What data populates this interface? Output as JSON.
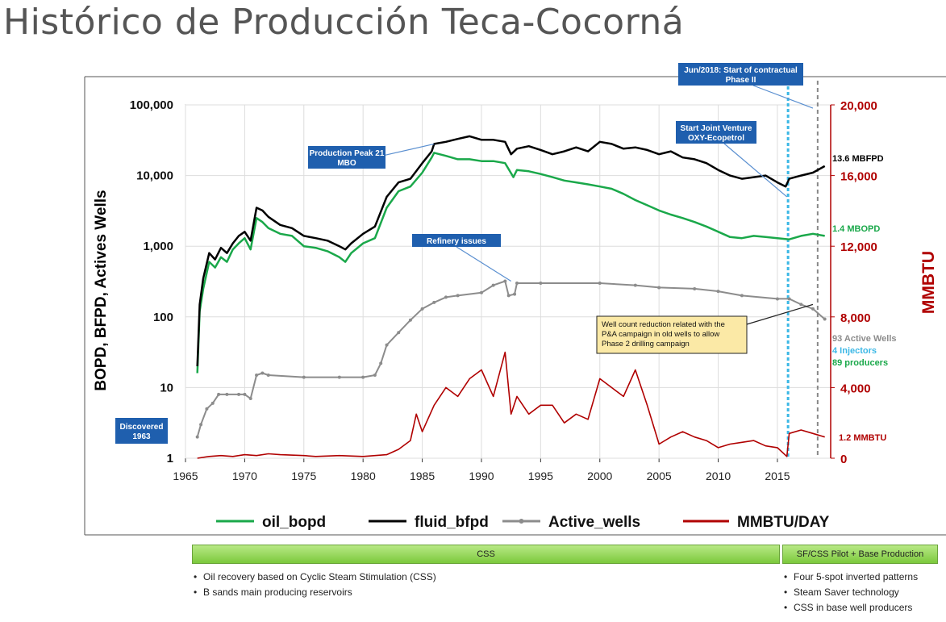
{
  "page": {
    "title": "Histórico de Producción Teca-Cocorná"
  },
  "colors": {
    "oil": "#1aa84a",
    "fluid": "#000000",
    "wells": "#8c8c8c",
    "mmbtu": "#b00000",
    "annotation_box": "#1f5fae",
    "injectors_line": "#3cb8e6",
    "phase_line": "#888888"
  },
  "chart_data": {
    "type": "line",
    "ylabel": "BOPD, BFPD, Actives Wells",
    "y2label": "MMBTU",
    "x_ticks": [
      1965,
      1970,
      1975,
      1980,
      1985,
      1990,
      1995,
      2000,
      2005,
      2010,
      2015
    ],
    "y_ticks": [
      "1",
      "10",
      "100",
      "1,000",
      "10,000",
      "100,000"
    ],
    "y_scale": "log",
    "ylim": [
      1,
      100000
    ],
    "y2_ticks": [
      "0",
      "4,000",
      "8,000",
      "12,000",
      "16,000",
      "20,000"
    ],
    "y2lim": [
      0,
      20000
    ],
    "xlim": [
      1965,
      2019.5
    ],
    "legend": [
      "oil_bopd",
      "fluid_bfpd",
      "Active_wells",
      "MMBTU/DAY"
    ],
    "legend_position": "bottom",
    "series": [
      {
        "name": "fluid_bfpd",
        "axis": "left",
        "points": [
          [
            1966.0,
            20
          ],
          [
            1966.2,
            150
          ],
          [
            1966.5,
            350
          ],
          [
            1967.0,
            800
          ],
          [
            1967.5,
            650
          ],
          [
            1968.0,
            950
          ],
          [
            1968.5,
            800
          ],
          [
            1969.0,
            1100
          ],
          [
            1969.5,
            1400
          ],
          [
            1970.0,
            1600
          ],
          [
            1970.5,
            1200
          ],
          [
            1971.0,
            3500
          ],
          [
            1971.5,
            3200
          ],
          [
            1972.0,
            2600
          ],
          [
            1973.0,
            2000
          ],
          [
            1974.0,
            1800
          ],
          [
            1975.0,
            1400
          ],
          [
            1976.0,
            1300
          ],
          [
            1977.0,
            1200
          ],
          [
            1978.0,
            1000
          ],
          [
            1978.5,
            900
          ],
          [
            1979.0,
            1100
          ],
          [
            1980.0,
            1500
          ],
          [
            1981.0,
            1900
          ],
          [
            1982.0,
            5000
          ],
          [
            1983.0,
            8000
          ],
          [
            1984.0,
            9000
          ],
          [
            1985.0,
            15000
          ],
          [
            1985.8,
            22000
          ],
          [
            1986.0,
            28000
          ],
          [
            1987.0,
            30000
          ],
          [
            1988.0,
            33000
          ],
          [
            1989.0,
            36000
          ],
          [
            1990.0,
            32000
          ],
          [
            1991.0,
            32000
          ],
          [
            1992.0,
            30000
          ],
          [
            1992.5,
            20000
          ],
          [
            1993.0,
            24000
          ],
          [
            1994.0,
            26000
          ],
          [
            1995.0,
            23000
          ],
          [
            1996.0,
            20000
          ],
          [
            1997.0,
            22000
          ],
          [
            1998.0,
            25000
          ],
          [
            1999.0,
            22000
          ],
          [
            2000.0,
            30000
          ],
          [
            2001.0,
            28000
          ],
          [
            2002.0,
            24000
          ],
          [
            2003.0,
            25000
          ],
          [
            2004.0,
            23000
          ],
          [
            2005.0,
            20000
          ],
          [
            2006.0,
            22000
          ],
          [
            2007.0,
            18000
          ],
          [
            2008.0,
            17000
          ],
          [
            2009.0,
            15000
          ],
          [
            2010.0,
            12000
          ],
          [
            2011.0,
            10000
          ],
          [
            2012.0,
            9000
          ],
          [
            2013.0,
            9500
          ],
          [
            2014.0,
            10000
          ],
          [
            2015.0,
            8000
          ],
          [
            2015.7,
            7000
          ],
          [
            2016.0,
            9000
          ],
          [
            2017.0,
            10000
          ],
          [
            2018.0,
            11000
          ],
          [
            2019.0,
            13600
          ]
        ]
      },
      {
        "name": "oil_bopd",
        "axis": "left",
        "points": [
          [
            1966.0,
            16
          ],
          [
            1966.2,
            120
          ],
          [
            1966.5,
            250
          ],
          [
            1967.0,
            600
          ],
          [
            1967.5,
            500
          ],
          [
            1968.0,
            700
          ],
          [
            1968.5,
            600
          ],
          [
            1969.0,
            900
          ],
          [
            1969.5,
            1100
          ],
          [
            1970.0,
            1300
          ],
          [
            1970.5,
            900
          ],
          [
            1971.0,
            2500
          ],
          [
            1971.5,
            2200
          ],
          [
            1972.0,
            1800
          ],
          [
            1973.0,
            1500
          ],
          [
            1974.0,
            1400
          ],
          [
            1975.0,
            1000
          ],
          [
            1976.0,
            950
          ],
          [
            1977.0,
            850
          ],
          [
            1978.0,
            700
          ],
          [
            1978.5,
            600
          ],
          [
            1979.0,
            800
          ],
          [
            1980.0,
            1100
          ],
          [
            1981.0,
            1300
          ],
          [
            1982.0,
            3500
          ],
          [
            1983.0,
            6000
          ],
          [
            1984.0,
            7000
          ],
          [
            1985.0,
            11000
          ],
          [
            1985.8,
            18000
          ],
          [
            1986.0,
            21000
          ],
          [
            1987.0,
            19000
          ],
          [
            1988.0,
            17000
          ],
          [
            1989.0,
            17000
          ],
          [
            1990.0,
            16000
          ],
          [
            1991.0,
            16000
          ],
          [
            1992.0,
            15000
          ],
          [
            1992.7,
            9500
          ],
          [
            1993.0,
            12000
          ],
          [
            1994.0,
            11500
          ],
          [
            1995.0,
            10500
          ],
          [
            1996.0,
            9500
          ],
          [
            1997.0,
            8500
          ],
          [
            1998.0,
            8000
          ],
          [
            1999.0,
            7500
          ],
          [
            2000.0,
            7000
          ],
          [
            2001.0,
            6500
          ],
          [
            2002.0,
            5500
          ],
          [
            2003.0,
            4500
          ],
          [
            2004.0,
            3800
          ],
          [
            2005.0,
            3200
          ],
          [
            2006.0,
            2800
          ],
          [
            2007.0,
            2500
          ],
          [
            2008.0,
            2200
          ],
          [
            2009.0,
            1900
          ],
          [
            2010.0,
            1600
          ],
          [
            2011.0,
            1350
          ],
          [
            2012.0,
            1300
          ],
          [
            2013.0,
            1400
          ],
          [
            2014.0,
            1350
          ],
          [
            2015.0,
            1300
          ],
          [
            2016.0,
            1250
          ],
          [
            2017.0,
            1400
          ],
          [
            2018.0,
            1500
          ],
          [
            2019.0,
            1400
          ]
        ]
      },
      {
        "name": "Active_wells",
        "axis": "left",
        "points": [
          [
            1966.0,
            2
          ],
          [
            1966.3,
            3
          ],
          [
            1966.8,
            5
          ],
          [
            1967.3,
            6
          ],
          [
            1967.8,
            8
          ],
          [
            1968.5,
            8
          ],
          [
            1969.5,
            8
          ],
          [
            1970.0,
            8
          ],
          [
            1970.5,
            7
          ],
          [
            1971.0,
            15
          ],
          [
            1971.5,
            16
          ],
          [
            1972.0,
            15
          ],
          [
            1975.0,
            14
          ],
          [
            1978.0,
            14
          ],
          [
            1980.0,
            14
          ],
          [
            1981.0,
            15
          ],
          [
            1981.5,
            22
          ],
          [
            1982.0,
            40
          ],
          [
            1983.0,
            60
          ],
          [
            1984.0,
            90
          ],
          [
            1985.0,
            130
          ],
          [
            1986.0,
            160
          ],
          [
            1987.0,
            190
          ],
          [
            1988.0,
            200
          ],
          [
            1990.0,
            220
          ],
          [
            1991.0,
            280
          ],
          [
            1992.0,
            320
          ],
          [
            1992.3,
            200
          ],
          [
            1992.8,
            210
          ],
          [
            1993.0,
            300
          ],
          [
            1995.0,
            300
          ],
          [
            2000.0,
            300
          ],
          [
            2003.0,
            280
          ],
          [
            2005.0,
            260
          ],
          [
            2008.0,
            250
          ],
          [
            2010.0,
            230
          ],
          [
            2012.0,
            200
          ],
          [
            2015.0,
            180
          ],
          [
            2016.0,
            180
          ],
          [
            2017.0,
            150
          ],
          [
            2018.0,
            130
          ],
          [
            2019.0,
            93
          ]
        ]
      },
      {
        "name": "MMBTU/DAY",
        "axis": "right",
        "points": [
          [
            1966.0,
            0
          ],
          [
            1967.0,
            100
          ],
          [
            1968.0,
            150
          ],
          [
            1969.0,
            100
          ],
          [
            1970.0,
            200
          ],
          [
            1971.0,
            150
          ],
          [
            1972.0,
            250
          ],
          [
            1973.0,
            200
          ],
          [
            1975.0,
            150
          ],
          [
            1976.0,
            100
          ],
          [
            1978.0,
            150
          ],
          [
            1980.0,
            100
          ],
          [
            1981.0,
            150
          ],
          [
            1982.0,
            200
          ],
          [
            1983.0,
            500
          ],
          [
            1984.0,
            1000
          ],
          [
            1984.5,
            2500
          ],
          [
            1985.0,
            1500
          ],
          [
            1986.0,
            3000
          ],
          [
            1987.0,
            4000
          ],
          [
            1988.0,
            3500
          ],
          [
            1989.0,
            4500
          ],
          [
            1990.0,
            5000
          ],
          [
            1991.0,
            3500
          ],
          [
            1992.0,
            6000
          ],
          [
            1992.5,
            2500
          ],
          [
            1993.0,
            3500
          ],
          [
            1994.0,
            2500
          ],
          [
            1995.0,
            3000
          ],
          [
            1996.0,
            3000
          ],
          [
            1997.0,
            2000
          ],
          [
            1998.0,
            2500
          ],
          [
            1999.0,
            2200
          ],
          [
            2000.0,
            4500
          ],
          [
            2001.0,
            4000
          ],
          [
            2002.0,
            3500
          ],
          [
            2003.0,
            5000
          ],
          [
            2004.0,
            3000
          ],
          [
            2005.0,
            800
          ],
          [
            2006.0,
            1200
          ],
          [
            2007.0,
            1500
          ],
          [
            2008.0,
            1200
          ],
          [
            2009.0,
            1000
          ],
          [
            2010.0,
            600
          ],
          [
            2011.0,
            800
          ],
          [
            2012.0,
            900
          ],
          [
            2013.0,
            1000
          ],
          [
            2014.0,
            700
          ],
          [
            2015.0,
            600
          ],
          [
            2015.8,
            100
          ],
          [
            2016.0,
            1400
          ],
          [
            2017.0,
            1600
          ],
          [
            2018.0,
            1400
          ],
          [
            2019.0,
            1200
          ]
        ]
      }
    ],
    "vlines": [
      {
        "name": "injectors-start",
        "x": 2015.9
      },
      {
        "name": "phase-ii-start",
        "x": 2018.4
      }
    ],
    "annotations": [
      {
        "id": "peak",
        "text": [
          "Production Peak 21",
          "MBO"
        ],
        "style": "box",
        "target": [
          1986.0,
          28000
        ]
      },
      {
        "id": "refinery",
        "text": [
          "Refinery issues"
        ],
        "style": "box",
        "target": [
          1992.5,
          320
        ]
      },
      {
        "id": "discovered",
        "text": [
          "Discovered",
          "1963"
        ],
        "style": "box"
      },
      {
        "id": "joint",
        "text": [
          "Start Joint Venture",
          "OXY-Ecopetrol"
        ],
        "style": "box",
        "target": [
          2015.8,
          5000
        ]
      },
      {
        "id": "phase",
        "text": [
          "Jun/2018: Start of contractual",
          "Phase II"
        ],
        "style": "box",
        "target": [
          2018.0,
          90000
        ]
      },
      {
        "id": "wellcount",
        "text": [
          "Well count reduction related with the",
          "P&A campaign in old wells  to allow",
          "Phase 2 drilling campaign"
        ],
        "style": "note",
        "target": [
          2018.0,
          150
        ]
      }
    ],
    "end_labels": [
      {
        "id": "fluid",
        "text": "13.6 MBFPD",
        "color": "#000000"
      },
      {
        "id": "oil",
        "text": "1.4 MBOPD",
        "color": "#1aa84a"
      },
      {
        "id": "wells",
        "text": "93 Active Wells",
        "color": "#8c8c8c"
      },
      {
        "id": "inj",
        "text": "4 Injectors",
        "color": "#3cb8e6"
      },
      {
        "id": "prod",
        "text": "89 producers",
        "color": "#1aa84a"
      },
      {
        "id": "mmbtu",
        "text": "1.2 MMBTU",
        "color": "#b00000"
      }
    ]
  },
  "phases": [
    {
      "label": "CSS",
      "bullets": [
        "Oil recovery based on Cyclic Steam Stimulation (CSS)",
        "B sands main producing reservoirs"
      ]
    },
    {
      "label": "SF/CSS Pilot + Base Production",
      "bullets": [
        "Four 5-spot inverted patterns",
        "Steam Saver technology",
        "CSS in base well producers"
      ]
    }
  ]
}
